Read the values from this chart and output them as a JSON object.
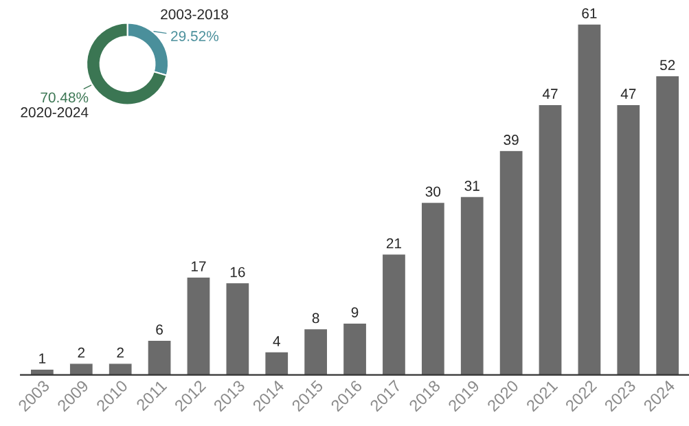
{
  "chart_data": [
    {
      "type": "bar",
      "categories": [
        "2003",
        "2009",
        "2010",
        "2011",
        "2012",
        "2013",
        "2014",
        "2015",
        "2016",
        "2017",
        "2018",
        "2019",
        "2020",
        "2021",
        "2022",
        "2023",
        "2024"
      ],
      "values": [
        1,
        2,
        2,
        6,
        17,
        16,
        4,
        8,
        9,
        21,
        30,
        31,
        39,
        47,
        61,
        47,
        52
      ],
      "color": "#6b6b6b",
      "data_labels": true,
      "grid": false,
      "legend": false
    },
    {
      "type": "donut",
      "categories": [
        "2003-2018",
        "2020-2024"
      ],
      "values": [
        29.52,
        70.48
      ],
      "colors": [
        "#4a8f9b",
        "#3b7653"
      ],
      "value_labels": [
        "29.52%",
        "70.48%"
      ]
    }
  ]
}
